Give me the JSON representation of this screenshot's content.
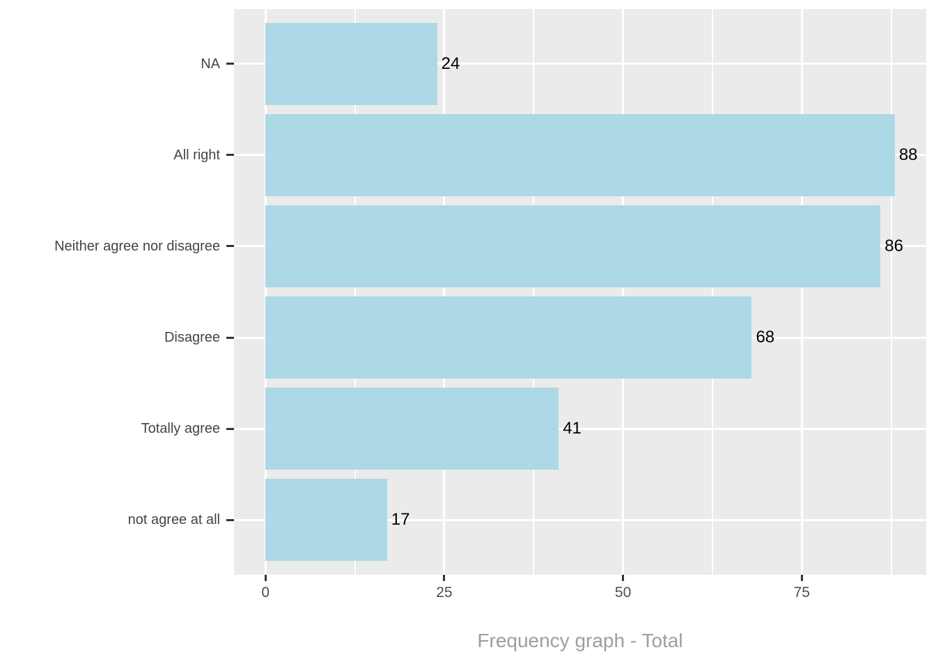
{
  "chart_data": {
    "type": "bar",
    "orientation": "horizontal",
    "title": "",
    "xlabel": "Frequency graph - Total",
    "ylabel": "",
    "categories": [
      "NA",
      "All right",
      "Neither agree nor disagree",
      "Disagree",
      "Totally agree",
      "not agree at all"
    ],
    "values": [
      24,
      88,
      86,
      68,
      41,
      17
    ],
    "value_labels": [
      "24",
      "88",
      "86",
      "68",
      "41",
      "17"
    ],
    "x_ticks": [
      0,
      25,
      50,
      75
    ],
    "x_tick_labels": [
      "0",
      "25",
      "50",
      "75"
    ],
    "x_minor_ticks": [
      12.5,
      37.5,
      62.5,
      87.5
    ],
    "xlim": [
      -4.4,
      92.4
    ],
    "bar_width_fraction": 0.9,
    "grid": true,
    "legend_position": "none",
    "colors": {
      "bar_fill": "#ADD8E6",
      "panel_background": "#EBEBEB",
      "gridline": "#FFFFFF",
      "axis_text": "#4D4D4D",
      "category_text": "#444444",
      "value_text": "#000000",
      "tick_mark": "#333333",
      "axis_title": "#9E9E9E",
      "page_background": "#FFFFFF"
    }
  }
}
